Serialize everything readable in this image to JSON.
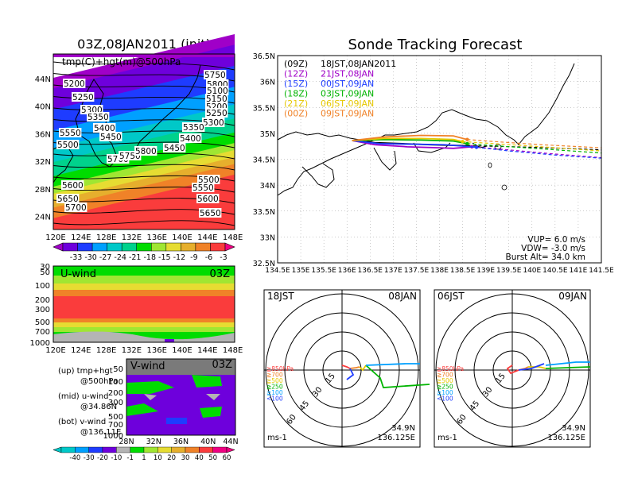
{
  "colors": {
    "temp_scale": [
      "#a000c8",
      "#6e00dc",
      "#1e3cff",
      "#00a0ff",
      "#00c8c8",
      "#00d28c",
      "#00dc00",
      "#a0e632",
      "#e6dc32",
      "#e6af2d",
      "#f08228",
      "#fa3c3c",
      "#f00082"
    ],
    "wind_scale": [
      "#00c8c8",
      "#00a0ff",
      "#1e3cff",
      "#6e00dc",
      "#b4b4b4",
      "#00dc00",
      "#a0e632",
      "#e6dc32",
      "#e6af2d",
      "#f08228",
      "#fa3c3c",
      "#f00082"
    ],
    "track_09Z": "#000000",
    "track_12Z": "#a000c8",
    "track_15Z": "#1e3cff",
    "track_18Z": "#00b400",
    "track_21Z": "#e6c800",
    "track_00Z": "#f08228"
  },
  "left": {
    "title": "03Z,08JAN2011 (init)",
    "map": {
      "label": "tmp(C)+hgt(m)@500hPa",
      "lat_ticks": [
        "44N",
        "40N",
        "36N",
        "32N",
        "28N",
        "24N"
      ],
      "lon_ticks": [
        "120E",
        "124E",
        "128E",
        "132E",
        "136E",
        "140E",
        "144E",
        "148E"
      ],
      "contour_labels": [
        "5200",
        "5250",
        "5300",
        "5350",
        "5400",
        "5450",
        "5500",
        "5550",
        "5600",
        "5650",
        "5700",
        "5750",
        "5800",
        "5100",
        "5150",
        "5200",
        "5250",
        "5300",
        "5350",
        "5400",
        "5450",
        "5500",
        "5550",
        "5600",
        "5650",
        "5700",
        "5750",
        "5800"
      ]
    },
    "temp_colorbar": {
      "ticks": [
        "-33",
        "-30",
        "-27",
        "-24",
        "-21",
        "-18",
        "-15",
        "-12",
        "-9",
        "-6",
        "-3"
      ]
    },
    "uwind": {
      "label": "U-wind",
      "time": "03Z",
      "p_ticks": [
        "30",
        "50",
        "100",
        "200",
        "300",
        "500",
        "700",
        "1000"
      ],
      "lon_ticks": [
        "120E",
        "124E",
        "128E",
        "132E",
        "136E",
        "140E",
        "144E",
        "148E"
      ]
    },
    "vwind": {
      "label": "V-wind",
      "time": "03Z",
      "p_ticks": [
        "50",
        "100",
        "200",
        "300",
        "500",
        "700",
        "1000"
      ],
      "lat_ticks": [
        "28N",
        "32N",
        "36N",
        "40N",
        "44N"
      ]
    },
    "legend_notes": [
      {
        "a": "(up)  tmp+hgt",
        "b": "@500hPa"
      },
      {
        "a": "(mid)  u-wind",
        "b": "@34.86N"
      },
      {
        "a": "(bot)  v-wind",
        "b": "@136.11E"
      }
    ],
    "wind_colorbar": {
      "ticks": [
        "-40",
        "-30",
        "-20",
        "-10",
        "-1",
        "1",
        "10",
        "20",
        "30",
        "40",
        "50",
        "60"
      ]
    }
  },
  "right": {
    "title": "Sonde Tracking Forecast",
    "map": {
      "lat_ticks": [
        "36.5N",
        "36N",
        "35.5N",
        "35N",
        "34.5N",
        "34N",
        "33.5N",
        "33N",
        "32.5N"
      ],
      "lon_ticks": [
        "134.5E",
        "135E",
        "135.5E",
        "136E",
        "136.5E",
        "137E",
        "137.5E",
        "138E",
        "138.5E",
        "139E",
        "139.5E",
        "140E",
        "140.5E",
        "141E",
        "141.5E"
      ],
      "tracks": [
        {
          "tag": "(09Z)",
          "label": "18JST,08JAN2011"
        },
        {
          "tag": "(12Z)",
          "label": "21JST,08JAN"
        },
        {
          "tag": "(15Z)",
          "label": "00JST,09JAN"
        },
        {
          "tag": "(18Z)",
          "label": "03JST,09JAN"
        },
        {
          "tag": "(21Z)",
          "label": "06JST,09JAN"
        },
        {
          "tag": "(00Z)",
          "label": "09JST,09JAN"
        }
      ],
      "params": [
        "VUP=  6.0  m/s",
        "VDW= -3.0  m/s",
        "Burst Alt=  34.0  km"
      ]
    },
    "polars": [
      {
        "left_label": "18JST",
        "right_label": "08JAN",
        "ring_labels": [
          "15",
          "30",
          "45",
          "60"
        ],
        "lat": "34.9N",
        "lon": "136.125E",
        "unit": "ms-1"
      },
      {
        "left_label": "06JST",
        "right_label": "09JAN",
        "ring_labels": [
          "15",
          "30",
          "45",
          "60"
        ],
        "lat": "34.9N",
        "lon": "136.125E",
        "unit": "ms-1"
      }
    ],
    "hodo_legend": [
      "≧850hPa",
      "≧700",
      "≧500",
      "≧250",
      "≧100",
      "<100"
    ]
  },
  "chart_data": [
    {
      "type": "heatmap",
      "title": "03Z,08JAN2011 (init)",
      "variable": "tmp(C)+hgt(m)@500hPa",
      "lon_range": [
        120,
        150
      ],
      "lat_range": [
        22,
        48
      ],
      "temperature_colorbar": [
        -33,
        -30,
        -27,
        -24,
        -21,
        -18,
        -15,
        -12,
        -9,
        -6,
        -3
      ],
      "height_contours_m": [
        5100,
        5150,
        5200,
        5250,
        5300,
        5350,
        5400,
        5450,
        5500,
        5550,
        5600,
        5650,
        5700,
        5750,
        5800
      ]
    },
    {
      "type": "heatmap",
      "title": "U-wind 03Z",
      "x_range": [
        120,
        150
      ],
      "pressure_levels_hPa": [
        30,
        50,
        100,
        200,
        300,
        500,
        700,
        1000
      ],
      "wind_colorbar": [
        -40,
        -30,
        -20,
        -10,
        -1,
        1,
        10,
        20,
        30,
        40,
        50,
        60
      ]
    },
    {
      "type": "heatmap",
      "title": "V-wind 03Z",
      "x_range": [
        28,
        44
      ],
      "pressure_levels_hPa": [
        50,
        100,
        200,
        300,
        500,
        700,
        1000
      ]
    },
    {
      "type": "line",
      "title": "Sonde Tracking Forecast",
      "x_range": [
        134.5,
        141.5
      ],
      "y_range": [
        32.5,
        36.5
      ],
      "series": [
        {
          "name": "(09Z) 18JST,08JAN2011",
          "points": [
            [
              136.11,
              34.86
            ],
            [
              136.6,
              34.82
            ],
            [
              137.2,
              34.8
            ],
            [
              137.8,
              34.78
            ],
            [
              138.2,
              34.77
            ],
            [
              138.6,
              34.76
            ],
            [
              139.2,
              34.75
            ],
            [
              140.0,
              34.73
            ],
            [
              141.0,
              34.7
            ],
            [
              141.5,
              34.68
            ]
          ]
        },
        {
          "name": "(12Z) 21JST,08JAN",
          "points": [
            [
              136.11,
              34.86
            ],
            [
              136.6,
              34.78
            ],
            [
              137.3,
              34.74
            ],
            [
              138.0,
              34.72
            ],
            [
              138.3,
              34.71
            ],
            [
              138.7,
              34.74
            ],
            [
              139.5,
              34.68
            ],
            [
              140.5,
              34.6
            ],
            [
              141.5,
              34.53
            ]
          ]
        },
        {
          "name": "(15Z) 00JST,09JAN",
          "points": [
            [
              136.11,
              34.86
            ],
            [
              136.7,
              34.8
            ],
            [
              137.4,
              34.79
            ],
            [
              138.1,
              34.78
            ],
            [
              138.4,
              34.76
            ],
            [
              138.8,
              34.73
            ],
            [
              139.5,
              34.66
            ],
            [
              140.5,
              34.58
            ],
            [
              141.5,
              34.52
            ]
          ]
        },
        {
          "name": "(18Z) 03JST,09JAN",
          "points": [
            [
              136.11,
              34.86
            ],
            [
              136.8,
              34.88
            ],
            [
              137.6,
              34.87
            ],
            [
              138.3,
              34.85
            ],
            [
              138.6,
              34.8
            ],
            [
              139.2,
              34.76
            ],
            [
              140.2,
              34.7
            ],
            [
              141.5,
              34.62
            ]
          ]
        },
        {
          "name": "(21Z) 06JST,09JAN",
          "points": [
            [
              136.11,
              34.86
            ],
            [
              136.8,
              34.9
            ],
            [
              137.6,
              34.9
            ],
            [
              138.3,
              34.88
            ],
            [
              138.5,
              34.84
            ],
            [
              139.2,
              34.8
            ],
            [
              140.2,
              34.74
            ],
            [
              141.5,
              34.66
            ]
          ]
        },
        {
          "name": "(00Z) 09JST,09JAN",
          "points": [
            [
              136.11,
              34.86
            ],
            [
              136.8,
              34.93
            ],
            [
              137.6,
              34.96
            ],
            [
              138.3,
              34.95
            ],
            [
              138.6,
              34.88
            ],
            [
              139.2,
              34.84
            ],
            [
              140.2,
              34.78
            ],
            [
              141.5,
              34.72
            ]
          ]
        }
      ],
      "VUP_m_s": 6.0,
      "VDW_m_s": -3.0,
      "burst_alt_km": 34.0
    }
  ]
}
